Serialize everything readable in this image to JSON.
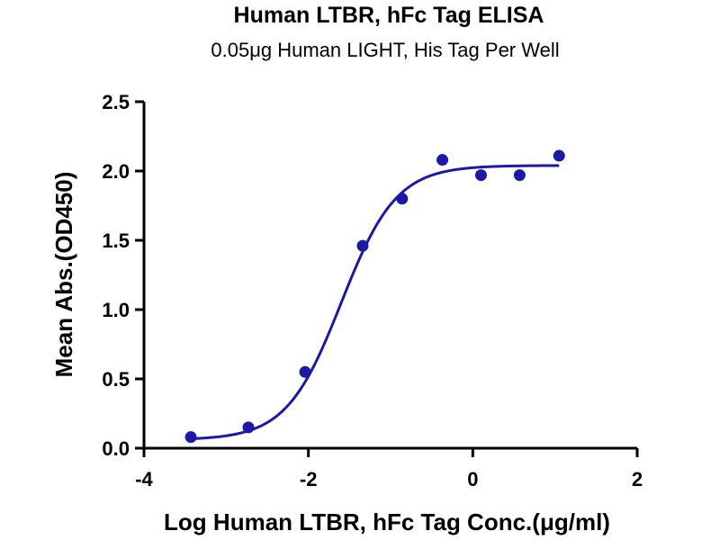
{
  "chart_data": {
    "type": "scatter",
    "title": "Human LTBR, hFc Tag ELISA",
    "subtitle": "0.05μg Human LIGHT, His Tag Per Well",
    "xlabel": "Log Human LTBR, hFc Tag Conc.(μg/ml)",
    "ylabel": "Mean Abs.(OD450)",
    "xlim": [
      -4,
      2
    ],
    "ylim": [
      0,
      2.5
    ],
    "x_ticks": [
      -4,
      -2,
      0,
      2
    ],
    "x_tick_labels": [
      "-4",
      "-2",
      "0",
      "2"
    ],
    "y_ticks": [
      0,
      0.5,
      1,
      1.5,
      2,
      2.5
    ],
    "y_tick_labels": [
      "0.0",
      "0.5",
      "1.0",
      "1.5",
      "2.0",
      "2.5"
    ],
    "grid": false,
    "legend": "none",
    "series": [
      {
        "x": [
          -3.43,
          -2.73,
          -2.04,
          -1.34,
          -0.86,
          -0.37,
          0.1,
          0.57,
          1.05
        ],
        "y": [
          0.08,
          0.15,
          0.55,
          1.46,
          1.8,
          2.08,
          1.97,
          1.97,
          2.11
        ],
        "fit": {
          "model": "4PL",
          "bottom": 0.06,
          "top": 2.04,
          "logEC50": -1.6,
          "hill": 1.3,
          "x_range": [
            -3.43,
            1.05
          ]
        }
      }
    ],
    "colors": {
      "series": "#1a1aa6",
      "axis": "#000000"
    }
  }
}
